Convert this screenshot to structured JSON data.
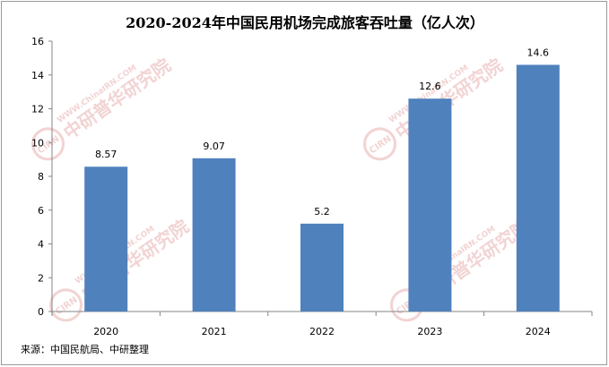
{
  "chart_data": {
    "type": "bar",
    "title": "2020-2024年中国民用机场完成旅客吞吐量（亿人次）",
    "categories": [
      "2020",
      "2021",
      "2022",
      "2023",
      "2024"
    ],
    "values": [
      8.57,
      9.07,
      5.2,
      12.6,
      14.6
    ],
    "value_labels": [
      "8.57",
      "9.07",
      "5.2",
      "12.6",
      "14.6"
    ],
    "yticks": [
      "0",
      "2",
      "4",
      "6",
      "8",
      "10",
      "12",
      "14",
      "16"
    ],
    "ylim": [
      0,
      16
    ],
    "xlabel": "",
    "ylabel": "",
    "grid": false,
    "legend": "none",
    "bar_color": "#4f81bd"
  },
  "source": "来源：中国民航局、中研整理",
  "watermark": {
    "logo_letters": "CIRN",
    "cn_text": "中研普华研究院",
    "en_text": "WWW.ChinaIRN.COM",
    "color": "#e8b0b0"
  }
}
